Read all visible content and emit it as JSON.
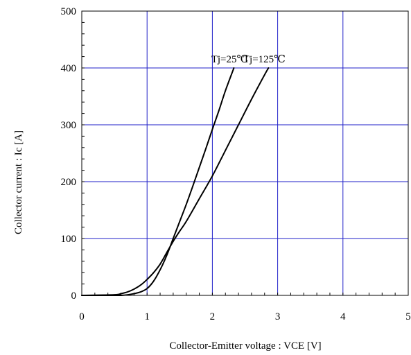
{
  "chart_data": {
    "type": "line",
    "xlabel": "Collector-Emitter voltage : VCE [V]",
    "ylabel": "Collector current : Ic [A]",
    "xlim": [
      0,
      5
    ],
    "ylim": [
      0,
      500
    ],
    "x_ticks": [
      0,
      1,
      2,
      3,
      4,
      5
    ],
    "y_ticks": [
      0,
      100,
      200,
      300,
      400,
      500
    ],
    "x_tick_labels": [
      "0",
      "1",
      "2",
      "3",
      "4",
      "5"
    ],
    "y_tick_labels": [
      "0",
      "100",
      "200",
      "300",
      "400",
      "500"
    ],
    "grid": true,
    "grid_color": "#1f1fc8",
    "line_color": "#000000",
    "series": [
      {
        "name": "Tj=25℃",
        "x": [
          0.0,
          0.5,
          0.6,
          0.7,
          0.8,
          0.9,
          1.0,
          1.1,
          1.2,
          1.3,
          1.4,
          1.5,
          1.6,
          1.7,
          1.8,
          1.9,
          2.0,
          2.1,
          2.2,
          2.33
        ],
        "y": [
          0,
          0,
          0,
          1,
          3,
          6,
          12,
          25,
          45,
          70,
          100,
          130,
          160,
          192,
          225,
          258,
          292,
          325,
          360,
          400
        ]
      },
      {
        "name": "Tj=125℃",
        "x": [
          0.0,
          0.5,
          0.6,
          0.7,
          0.8,
          0.9,
          1.0,
          1.1,
          1.2,
          1.3,
          1.4,
          1.5,
          1.6,
          1.8,
          2.0,
          2.2,
          2.4,
          2.6,
          2.8,
          2.86
        ],
        "y": [
          0,
          1,
          3,
          6,
          11,
          18,
          28,
          40,
          55,
          75,
          95,
          113,
          130,
          170,
          210,
          255,
          300,
          345,
          388,
          400
        ]
      }
    ],
    "annotations": [
      {
        "text": "Tj=25℃",
        "series": 0
      },
      {
        "text": "Tj=125℃",
        "series": 1
      }
    ]
  }
}
